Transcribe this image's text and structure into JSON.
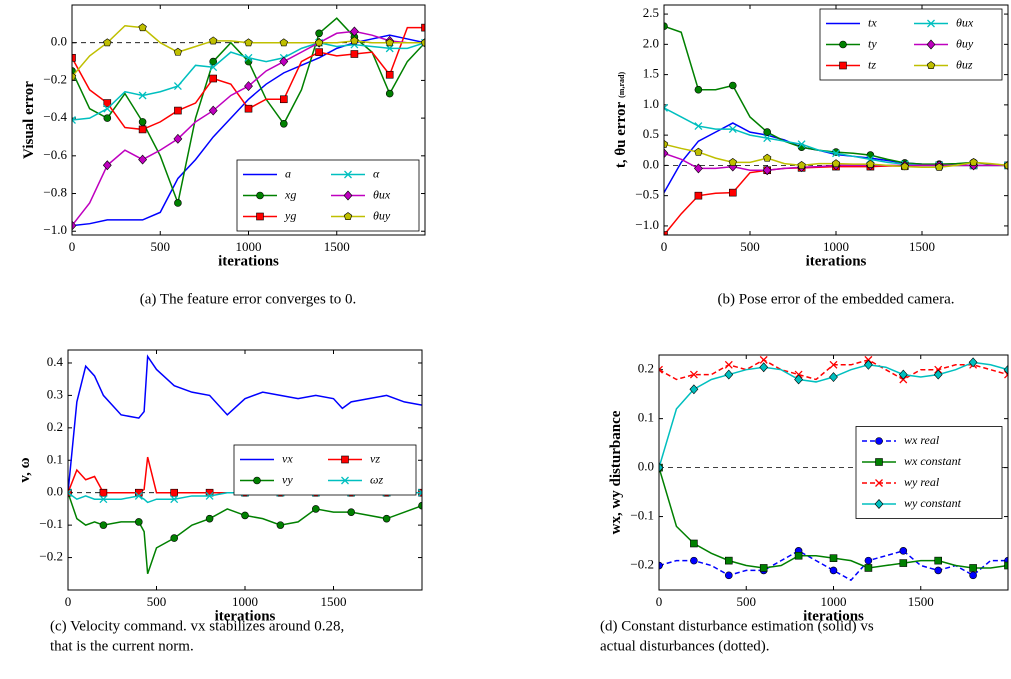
{
  "chart_data": [
    {
      "type": "line",
      "ylabel": "Visual error",
      "xlabel": "iterations",
      "caption": [
        "(a) The feature error converges to 0."
      ],
      "x": [
        0,
        100,
        200,
        300,
        400,
        500,
        600,
        700,
        800,
        900,
        1000,
        1100,
        1200,
        1300,
        1400,
        1500,
        1600,
        1700,
        1800,
        1900,
        2000
      ],
      "xlim": [
        0,
        2000
      ],
      "xticks": [
        0,
        500,
        1000,
        1500
      ],
      "ylim": [
        -1.02,
        0.2
      ],
      "yticks": [
        {
          "value": -1.0,
          "label": "−1.0"
        },
        {
          "value": -0.8,
          "label": "−0.8"
        },
        {
          "value": -0.6,
          "label": "−0.6"
        },
        {
          "value": -0.4,
          "label": "−0.4"
        },
        {
          "value": -0.2,
          "label": "−0.2"
        },
        {
          "value": 0,
          "label": "0.0"
        }
      ],
      "hline": 0,
      "legend": "lower right",
      "legend_columns": 2,
      "series": [
        {
          "name": "a",
          "color": "#0000ff",
          "marker": "none",
          "values": [
            -0.97,
            -0.96,
            -0.94,
            -0.94,
            -0.94,
            -0.9,
            -0.72,
            -0.62,
            -0.5,
            -0.4,
            -0.3,
            -0.22,
            -0.16,
            -0.12,
            -0.08,
            -0.03,
            0,
            0.02,
            0.04,
            0.02,
            0
          ]
        },
        {
          "name": "xg",
          "color": "#008000",
          "marker": "circle",
          "values": [
            -0.15,
            -0.35,
            -0.4,
            -0.27,
            -0.42,
            -0.6,
            -0.85,
            -0.4,
            -0.1,
            0,
            -0.1,
            -0.3,
            -0.43,
            -0.25,
            0.05,
            0.13,
            0.03,
            -0.05,
            -0.27,
            -0.1,
            0
          ]
        },
        {
          "name": "yg",
          "color": "#ff0000",
          "marker": "square",
          "values": [
            -0.08,
            -0.25,
            -0.32,
            -0.45,
            -0.46,
            -0.42,
            -0.36,
            -0.32,
            -0.19,
            -0.22,
            -0.35,
            -0.3,
            -0.3,
            -0.1,
            -0.05,
            -0.07,
            -0.06,
            -0.05,
            -0.17,
            0.08,
            0.08
          ]
        },
        {
          "name": "α",
          "color": "#00bfbf",
          "marker": "x",
          "values": [
            -0.41,
            -0.4,
            -0.35,
            -0.26,
            -0.28,
            -0.26,
            -0.23,
            -0.12,
            -0.13,
            -0.05,
            -0.08,
            -0.1,
            -0.08,
            -0.03,
            0,
            -0.02,
            -0.01,
            -0.02,
            -0.03,
            -0.03,
            0
          ]
        },
        {
          "name": "θux",
          "color": "#bf00bf",
          "marker": "diamond",
          "values": [
            -0.97,
            -0.85,
            -0.65,
            -0.57,
            -0.62,
            -0.57,
            -0.51,
            -0.42,
            -0.36,
            -0.28,
            -0.23,
            -0.15,
            -0.1,
            -0.05,
            0,
            0.05,
            0.06,
            0.04,
            0.01,
            0,
            0
          ]
        },
        {
          "name": "θuy",
          "color": "#bfbf00",
          "marker": "pentagon",
          "values": [
            -0.18,
            -0.07,
            0,
            0.09,
            0.08,
            0,
            -0.05,
            -0.02,
            0.01,
            0.01,
            0,
            0,
            0,
            0,
            0,
            0,
            0.01,
            0,
            0,
            0,
            0
          ]
        }
      ]
    },
    {
      "type": "line",
      "ylabel": "t, θu error",
      "ylabel_unit": "(m,rad)",
      "xlabel": "iterations",
      "caption": [
        "(b) Pose error of the embedded camera."
      ],
      "x": [
        0,
        100,
        200,
        300,
        400,
        500,
        600,
        700,
        800,
        900,
        1000,
        1100,
        1200,
        1300,
        1400,
        1500,
        1600,
        1700,
        1800,
        1900,
        2000
      ],
      "xlim": [
        0,
        2000
      ],
      "xticks": [
        0,
        500,
        1000,
        1500
      ],
      "ylim": [
        -1.15,
        2.65
      ],
      "yticks": [
        {
          "value": -1.0,
          "label": "−1.0"
        },
        {
          "value": -0.5,
          "label": "−0.5"
        },
        {
          "value": 0,
          "label": "0.0"
        },
        0.5,
        {
          "value": 1.0,
          "label": "1.0"
        },
        1.5,
        {
          "value": 2.0,
          "label": "2.0"
        },
        2.5
      ],
      "hline": 0,
      "legend": "upper right",
      "legend_columns": 2,
      "series": [
        {
          "name": "tx",
          "color": "#0000ff",
          "marker": "none",
          "values": [
            -0.45,
            0.05,
            0.4,
            0.55,
            0.7,
            0.55,
            0.5,
            0.42,
            0.3,
            0.25,
            0.18,
            0.15,
            0.12,
            0.08,
            0.04,
            0.02,
            0.01,
            0,
            0,
            0,
            0
          ]
        },
        {
          "name": "ty",
          "color": "#008000",
          "marker": "circle",
          "values": [
            2.3,
            2.2,
            1.25,
            1.25,
            1.32,
            0.8,
            0.55,
            0.4,
            0.3,
            0.25,
            0.22,
            0.2,
            0.17,
            0.1,
            0.04,
            0.02,
            0.02,
            0.03,
            0.05,
            0.02,
            0
          ]
        },
        {
          "name": "tz",
          "color": "#ff0000",
          "marker": "square",
          "values": [
            -1.15,
            -0.8,
            -0.5,
            -0.46,
            -0.45,
            -0.12,
            -0.08,
            -0.05,
            -0.04,
            -0.03,
            -0.02,
            -0.02,
            -0.02,
            -0.01,
            -0.01,
            0,
            0,
            0,
            0,
            0,
            0
          ]
        },
        {
          "name": "θux",
          "color": "#00bfbf",
          "marker": "x",
          "values": [
            0.95,
            0.8,
            0.65,
            0.6,
            0.6,
            0.5,
            0.45,
            0.4,
            0.35,
            0.25,
            0.2,
            0.15,
            0.1,
            0.05,
            0.02,
            0,
            0,
            0,
            0,
            0,
            0
          ]
        },
        {
          "name": "θuy",
          "color": "#bf00bf",
          "marker": "diamond",
          "values": [
            0.2,
            0.1,
            -0.05,
            -0.05,
            -0.02,
            -0.08,
            -0.08,
            -0.05,
            -0.03,
            -0.02,
            0,
            0,
            0,
            0,
            0,
            0,
            0,
            0,
            0,
            0,
            0
          ]
        },
        {
          "name": "θuz",
          "color": "#bfbf00",
          "marker": "pentagon",
          "values": [
            0.35,
            0.28,
            0.22,
            0.12,
            0.05,
            0.05,
            0.12,
            0.03,
            0,
            0.03,
            0.03,
            0.02,
            0.02,
            0,
            -0.02,
            -0.03,
            -0.03,
            0,
            0.05,
            0.03,
            0
          ]
        }
      ]
    },
    {
      "type": "line",
      "ylabel": "v, ω",
      "xlabel": "iterations",
      "caption": [
        "(c) Velocity command. vx stabilizes around 0.28,",
        "that is the current norm."
      ],
      "x": [
        0,
        50,
        100,
        150,
        200,
        300,
        400,
        430,
        450,
        500,
        600,
        700,
        800,
        900,
        1000,
        1100,
        1200,
        1300,
        1400,
        1500,
        1550,
        1600,
        1700,
        1800,
        1900,
        2000
      ],
      "xlim": [
        0,
        2000
      ],
      "xticks": [
        0,
        500,
        1000,
        1500
      ],
      "ylim": [
        -0.3,
        0.44
      ],
      "yticks": [
        {
          "value": -0.2,
          "label": "−0.2"
        },
        {
          "value": -0.1,
          "label": "−0.1"
        },
        {
          "value": 0,
          "label": "0.0"
        },
        0.1,
        0.2,
        0.3,
        0.4
      ],
      "hline": 0,
      "legend": "center right",
      "legend_columns": 2,
      "series": [
        {
          "name": "vx",
          "color": "#0000ff",
          "marker": "none",
          "values": [
            0,
            0.28,
            0.39,
            0.36,
            0.3,
            0.24,
            0.23,
            0.25,
            0.42,
            0.38,
            0.33,
            0.31,
            0.3,
            0.24,
            0.29,
            0.31,
            0.3,
            0.29,
            0.3,
            0.29,
            0.26,
            0.28,
            0.29,
            0.3,
            0.28,
            0.27
          ]
        },
        {
          "name": "vy",
          "color": "#008000",
          "marker": "circle",
          "values": [
            0,
            -0.08,
            -0.1,
            -0.09,
            -0.1,
            -0.09,
            -0.09,
            -0.12,
            -0.25,
            -0.17,
            -0.14,
            -0.1,
            -0.08,
            -0.05,
            -0.07,
            -0.08,
            -0.1,
            -0.09,
            -0.05,
            -0.06,
            -0.06,
            -0.06,
            -0.07,
            -0.08,
            -0.06,
            -0.04
          ]
        },
        {
          "name": "vz",
          "color": "#ff0000",
          "marker": "square",
          "values": [
            0,
            0.07,
            0.04,
            0.05,
            0,
            0,
            0,
            0.01,
            0.11,
            0,
            0,
            0,
            0,
            0,
            0,
            0,
            0,
            0,
            0,
            0,
            0,
            0,
            0,
            0,
            0,
            0
          ]
        },
        {
          "name": "ωz",
          "color": "#00bfbf",
          "marker": "x",
          "values": [
            0,
            -0.02,
            -0.01,
            -0.02,
            -0.02,
            -0.02,
            -0.01,
            -0.02,
            -0.03,
            -0.02,
            -0.02,
            -0.01,
            -0.01,
            0,
            0,
            0,
            0,
            0,
            0,
            0,
            0,
            0,
            0,
            0,
            0,
            0
          ]
        }
      ]
    },
    {
      "type": "line",
      "ylabel": "wx, wy disturbance",
      "xlabel": "iterations",
      "caption": [
        "(d) Constant disturbance estimation (solid) vs",
        "actual disturbances (dotted)."
      ],
      "x": [
        0,
        100,
        200,
        300,
        400,
        500,
        600,
        700,
        800,
        900,
        1000,
        1100,
        1200,
        1300,
        1400,
        1500,
        1600,
        1700,
        1800,
        1900,
        2000
      ],
      "xlim": [
        0,
        2000
      ],
      "xticks": [
        0,
        500,
        1000,
        1500
      ],
      "ylim": [
        -0.25,
        0.23
      ],
      "yticks": [
        {
          "value": -0.2,
          "label": "−0.2"
        },
        {
          "value": -0.1,
          "label": "−0.1"
        },
        {
          "value": 0,
          "label": "0.0"
        },
        0.1,
        0.2
      ],
      "hline": 0,
      "legend": "center right",
      "legend_columns": 1,
      "series": [
        {
          "name": "wx real",
          "color": "#0000ff",
          "marker": "circle",
          "linestyle": "dashed",
          "values": [
            -0.2,
            -0.19,
            -0.19,
            -0.2,
            -0.22,
            -0.21,
            -0.21,
            -0.19,
            -0.17,
            -0.19,
            -0.21,
            -0.23,
            -0.19,
            -0.18,
            -0.17,
            -0.2,
            -0.21,
            -0.2,
            -0.22,
            -0.19,
            -0.19
          ]
        },
        {
          "name": "wx constant",
          "color": "#008000",
          "marker": "square",
          "linestyle": "solid",
          "values": [
            0,
            -0.12,
            -0.155,
            -0.175,
            -0.19,
            -0.2,
            -0.205,
            -0.2,
            -0.18,
            -0.18,
            -0.185,
            -0.19,
            -0.205,
            -0.2,
            -0.195,
            -0.19,
            -0.19,
            -0.2,
            -0.205,
            -0.205,
            -0.2
          ]
        },
        {
          "name": "wy real",
          "color": "#ff0000",
          "marker": "x",
          "linestyle": "dashed",
          "values": [
            0.2,
            0.18,
            0.19,
            0.19,
            0.21,
            0.2,
            0.22,
            0.2,
            0.19,
            0.18,
            0.21,
            0.21,
            0.22,
            0.2,
            0.18,
            0.2,
            0.2,
            0.21,
            0.21,
            0.2,
            0.19
          ]
        },
        {
          "name": "wy constant",
          "color": "#00bfbf",
          "marker": "diamond",
          "linestyle": "solid",
          "values": [
            0,
            0.12,
            0.16,
            0.18,
            0.19,
            0.2,
            0.205,
            0.2,
            0.18,
            0.175,
            0.185,
            0.2,
            0.21,
            0.205,
            0.19,
            0.185,
            0.19,
            0.2,
            0.215,
            0.21,
            0.2
          ]
        }
      ]
    }
  ]
}
